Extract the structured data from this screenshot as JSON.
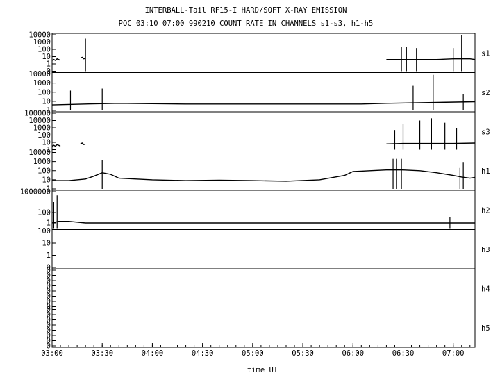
{
  "title_line1": "INTERBALL-Tail RF15-I HARD/SOFT X-RAY EMISSION",
  "title_line2": "POC 03:10 07:00 990210  COUNT RATE IN CHANNELS s1-s3, h1-h5",
  "xlabel": "time UT",
  "chart_data": {
    "type": "line",
    "x_ticks": [
      "03:00",
      "03:30",
      "04:00",
      "04:30",
      "05:00",
      "05:30",
      "06:00",
      "06:30",
      "07:00"
    ],
    "x_tick_minutes": [
      0,
      30,
      60,
      90,
      120,
      150,
      180,
      210,
      240
    ],
    "x_range_minutes": [
      0,
      253
    ],
    "scale": "log",
    "grid": false,
    "panels": [
      {
        "name": "s1",
        "y_ticks": [
          "10000",
          "1000",
          "100",
          "10",
          "1",
          "0"
        ],
        "tick_exponents": [
          4,
          3,
          2,
          1,
          0,
          -1
        ],
        "ylim_exp": [
          -1,
          4
        ],
        "segments": [
          {
            "x": [
              0,
              1,
              2,
              3,
              4,
              5
            ],
            "y": [
              3,
              4,
              3,
              5,
              4,
              3
            ]
          },
          {
            "x": [
              17,
              18,
              19,
              20
            ],
            "y": [
              6,
              8,
              5,
              6
            ]
          },
          {
            "x": [
              200,
              210,
              220,
              230,
              240,
              250,
              253
            ],
            "y": [
              4,
              4,
              4,
              4,
              5,
              5,
              4
            ]
          }
        ],
        "spikes": [
          {
            "x": 20,
            "y": 3000
          },
          {
            "x": 209,
            "y": 200
          },
          {
            "x": 212,
            "y": 200
          },
          {
            "x": 218,
            "y": 150
          },
          {
            "x": 240,
            "y": 150
          },
          {
            "x": 245,
            "y": 10000
          }
        ]
      },
      {
        "name": "s2",
        "y_ticks": [
          "10000",
          "1000",
          "100",
          "10",
          "1"
        ],
        "tick_exponents": [
          4,
          3,
          2,
          1,
          0
        ],
        "ylim_exp": [
          0,
          4
        ],
        "segments": [
          {
            "x": [
              0,
              20,
              40,
              80,
              120,
              160,
              185,
              200,
              220,
              253
            ],
            "y": [
              4,
              5,
              6,
              5,
              5,
              5,
              5,
              6,
              7,
              9
            ]
          }
        ],
        "spikes": [
          {
            "x": 11,
            "y": 150
          },
          {
            "x": 30,
            "y": 250
          },
          {
            "x": 216,
            "y": 500
          },
          {
            "x": 228,
            "y": 8000
          },
          {
            "x": 246,
            "y": 60
          }
        ]
      },
      {
        "name": "s3",
        "y_ticks": [
          "100000",
          "10000",
          "1000",
          "100",
          "10",
          "1"
        ],
        "tick_exponents": [
          5,
          4,
          3,
          2,
          1,
          0
        ],
        "ylim_exp": [
          0,
          5
        ],
        "segments": [
          {
            "x": [
              0,
              1,
              2,
              3,
              4,
              5
            ],
            "y": [
              3,
              4,
              3,
              5,
              4,
              3
            ]
          },
          {
            "x": [
              17,
              18,
              19,
              20
            ],
            "y": [
              6,
              8,
              5,
              6
            ]
          },
          {
            "x": [
              200,
              210,
              220,
              230,
              240,
              253
            ],
            "y": [
              6,
              7,
              7,
              7,
              7,
              8
            ]
          }
        ],
        "spikes": [
          {
            "x": 205,
            "y": 500
          },
          {
            "x": 210,
            "y": 3000
          },
          {
            "x": 220,
            "y": 10000
          },
          {
            "x": 227,
            "y": 20000
          },
          {
            "x": 235,
            "y": 5000
          },
          {
            "x": 242,
            "y": 1000
          }
        ]
      },
      {
        "name": "h1",
        "y_ticks": [
          "10000",
          "1000",
          "100",
          "10",
          "1"
        ],
        "tick_exponents": [
          4,
          3,
          2,
          1,
          0
        ],
        "ylim_exp": [
          0,
          4
        ],
        "segments": [
          {
            "x": [
              0,
              10,
              20,
              25,
              30,
              35,
              40,
              60,
              80,
              100,
              120,
              140,
              160,
              175,
              180,
              185,
              190,
              200,
              210,
              220,
              230,
              240,
              245,
              250,
              253
            ],
            "y": [
              8,
              8,
              12,
              25,
              60,
              40,
              15,
              10,
              8,
              9,
              8,
              7,
              10,
              30,
              80,
              90,
              100,
              120,
              120,
              100,
              60,
              30,
              20,
              15,
              18
            ]
          }
        ],
        "spikes": [
          {
            "x": 30,
            "y": 1500
          },
          {
            "x": 204,
            "y": 2000
          },
          {
            "x": 206,
            "y": 2000
          },
          {
            "x": 209,
            "y": 2000
          },
          {
            "x": 244,
            "y": 200
          },
          {
            "x": 246,
            "y": 900
          }
        ]
      },
      {
        "name": "h2",
        "y_ticks": [
          "1000000",
          "100",
          "1"
        ],
        "tick_exponents": [
          6,
          2,
          0
        ],
        "ylim_exp": [
          -1,
          6
        ],
        "segments": [
          {
            "x": [
              0,
              4,
              10,
              20,
              60,
              120,
              180,
              240,
              253
            ],
            "y": [
              1,
              2,
              2,
              1,
              1,
              1,
              1,
              1,
              1
            ]
          }
        ],
        "spikes": [
          {
            "x": 1,
            "y": 10000
          },
          {
            "x": 3,
            "y": 200000
          },
          {
            "x": 238,
            "y": 15
          }
        ]
      },
      {
        "name": "h3",
        "y_ticks": [
          "100",
          "10",
          "1",
          "0"
        ],
        "tick_exponents": [
          2,
          1,
          0,
          -1
        ],
        "ylim_exp": [
          -1,
          2
        ],
        "segments": [],
        "spikes": []
      },
      {
        "name": "h4",
        "y_ticks": [
          "0",
          "0",
          "0",
          "0",
          "0",
          "0",
          "0",
          "0"
        ],
        "tick_exponents": [
          7,
          6,
          5,
          4,
          3,
          2,
          1,
          0
        ],
        "ylim_exp": [
          0,
          7
        ],
        "segments": [],
        "spikes": []
      },
      {
        "name": "h5",
        "y_ticks": [
          "0",
          "0",
          "0",
          "0",
          "0",
          "0",
          "0",
          "0"
        ],
        "tick_exponents": [
          7,
          6,
          5,
          4,
          3,
          2,
          1,
          0
        ],
        "ylim_exp": [
          0,
          7
        ],
        "segments": [],
        "spikes": []
      }
    ]
  }
}
